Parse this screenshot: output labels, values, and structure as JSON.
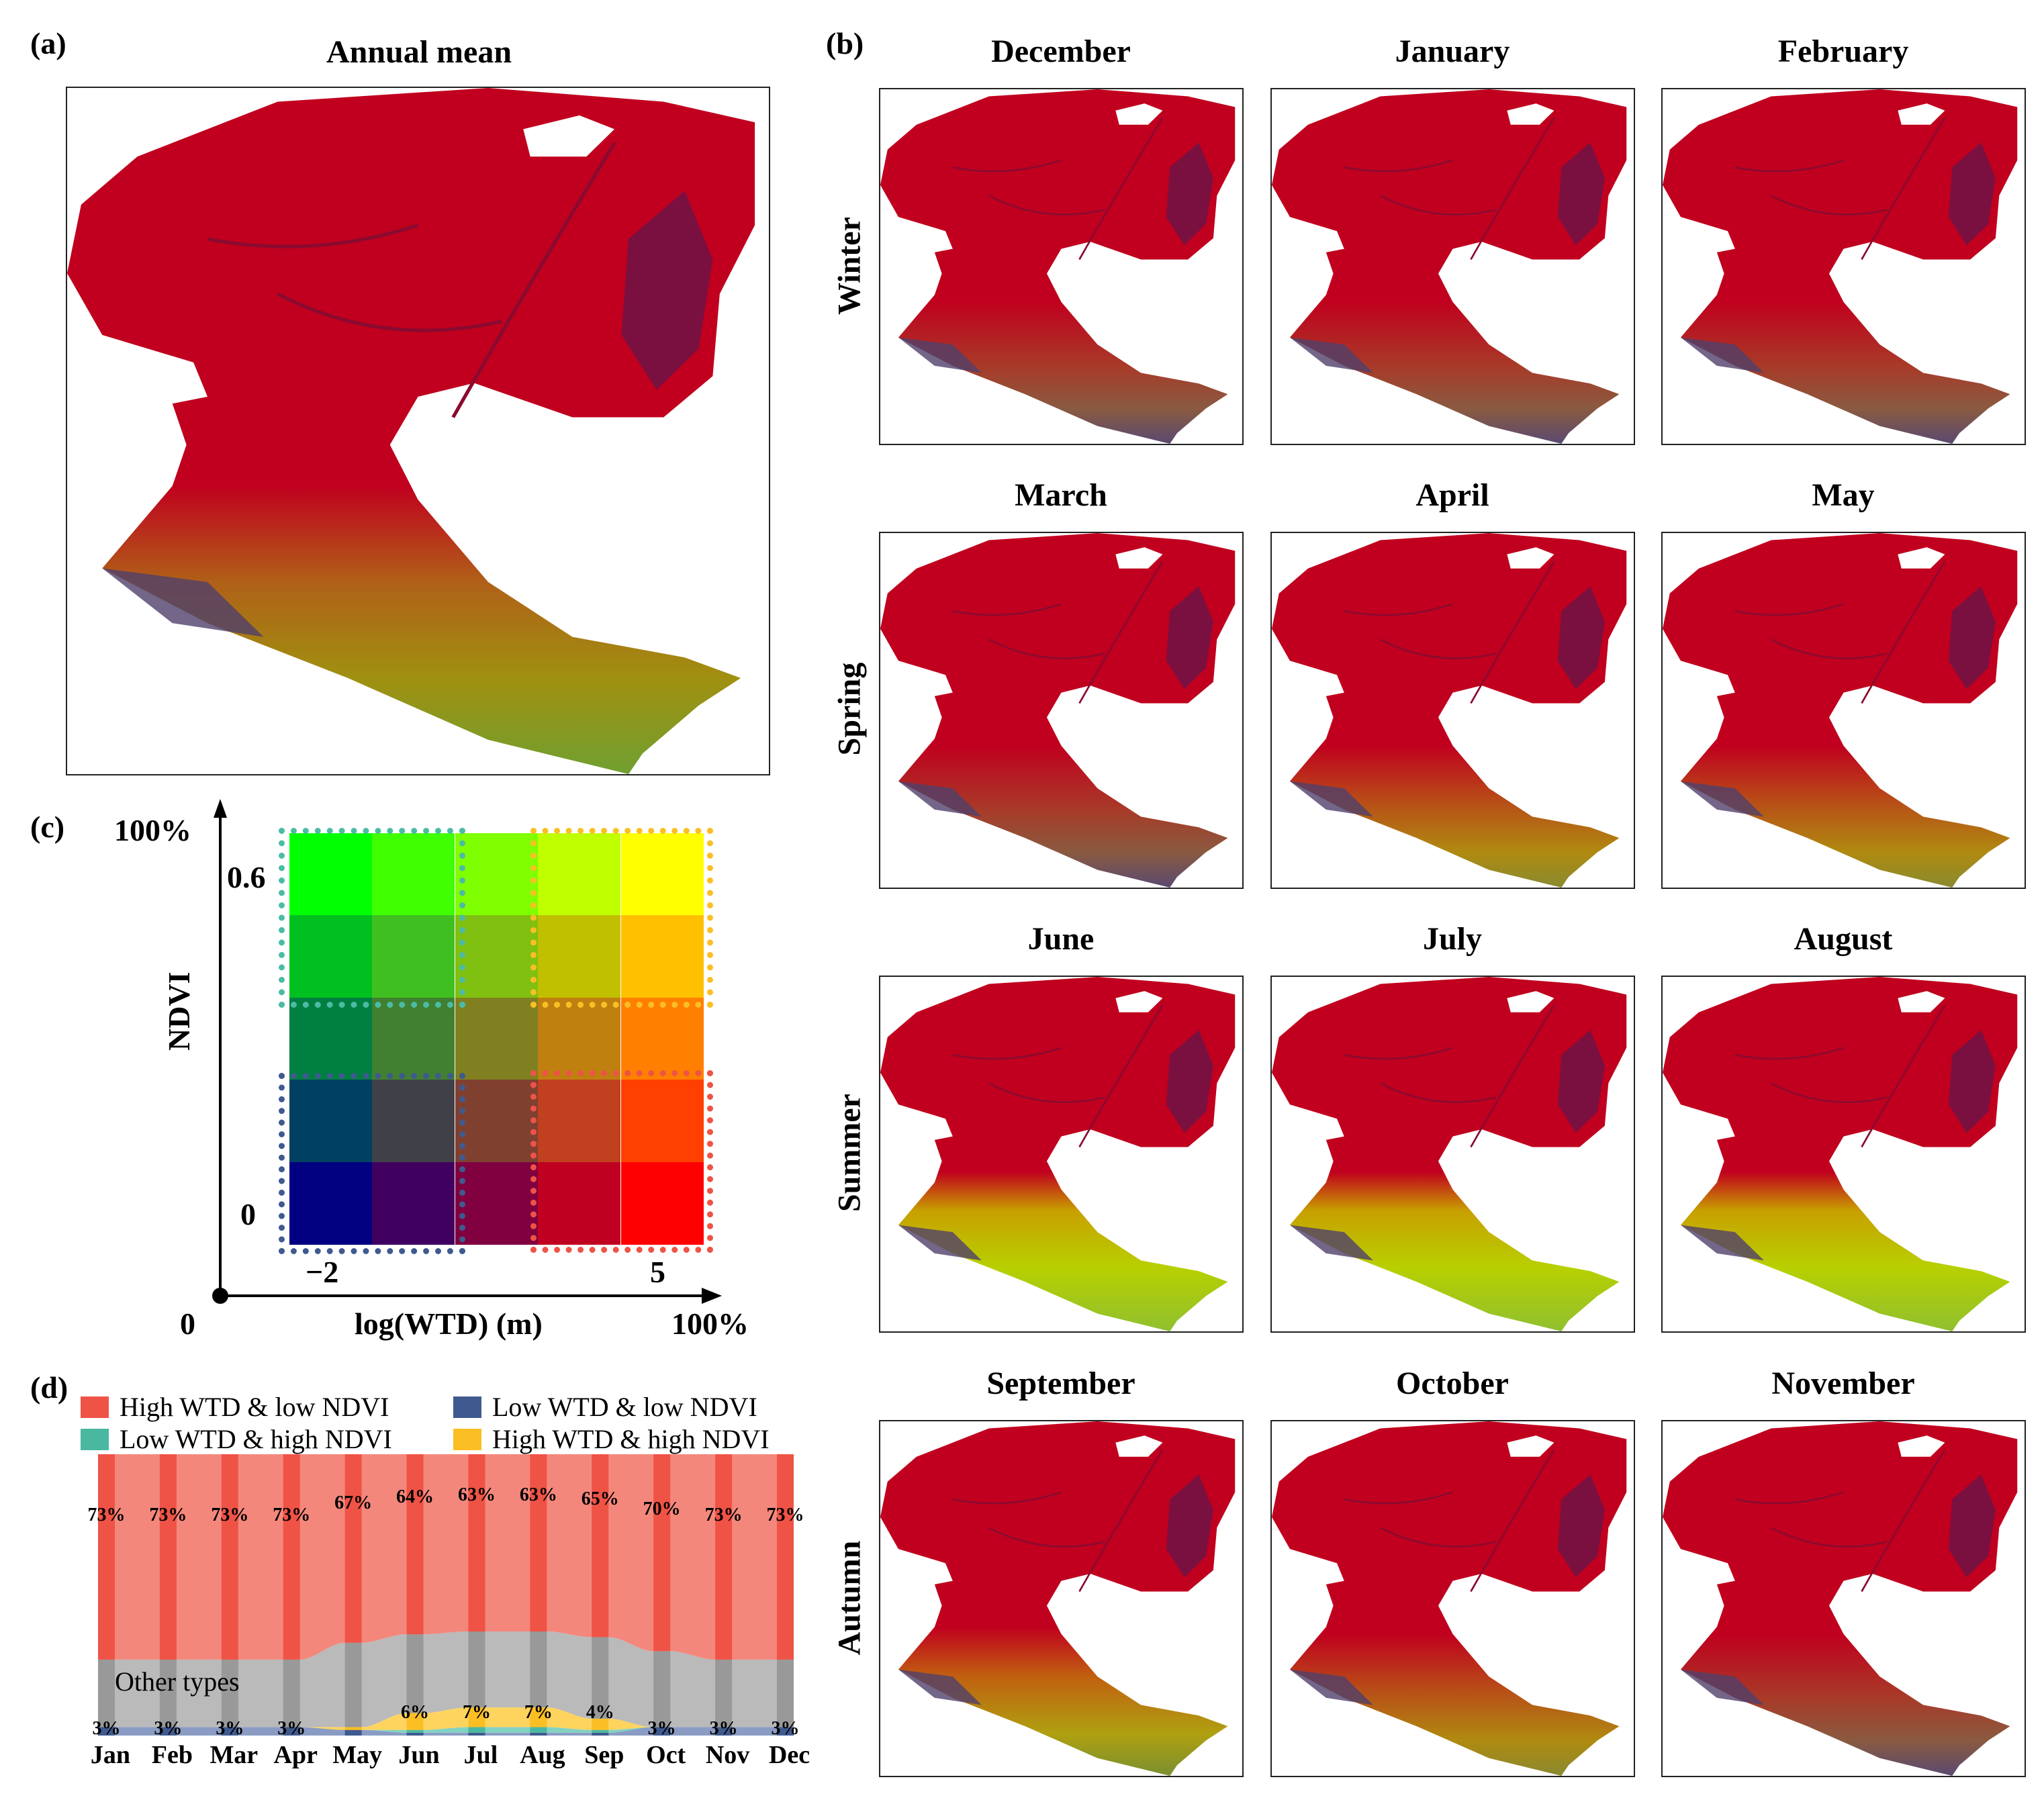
{
  "panel_a": {
    "label": "(a)",
    "title": "Annual mean"
  },
  "panel_b": {
    "label": "(b)",
    "seasons": [
      {
        "name": "Winter",
        "months": [
          "December",
          "January",
          "February"
        ]
      },
      {
        "name": "Spring",
        "months": [
          "March",
          "April",
          "May"
        ]
      },
      {
        "name": "Summer",
        "months": [
          "June",
          "July",
          "August"
        ]
      },
      {
        "name": "Autumn",
        "months": [
          "September",
          "October",
          "November"
        ]
      }
    ]
  },
  "panel_c": {
    "label": "(c)",
    "y_axis_label": "NDVI",
    "x_axis_label": "log(WTD) (m)",
    "origin_label": "0",
    "y_max_label": "100%",
    "x_max_label": "100%",
    "ndvi_ticks": [
      "0.6",
      "0"
    ],
    "wtd_ticks": [
      "−2",
      "5"
    ],
    "grid_colors": [
      [
        "#00ff00",
        "#40ff00",
        "#80ff00",
        "#bfff00",
        "#ffff00"
      ],
      [
        "#00c020",
        "#40c020",
        "#80c010",
        "#c0c000",
        "#ffc000"
      ],
      [
        "#008040",
        "#408030",
        "#808020",
        "#c08010",
        "#ff8000"
      ],
      [
        "#004060",
        "#404048",
        "#804030",
        "#c04020",
        "#ff4000"
      ],
      [
        "#000080",
        "#400060",
        "#800040",
        "#c00020",
        "#ff0000"
      ]
    ]
  },
  "panel_d": {
    "label": "(d)"
  },
  "chart_data": {
    "type": "area",
    "title": "",
    "xlabel": "",
    "ylabel": "",
    "ylim": [
      0,
      100
    ],
    "categories": [
      "Jan",
      "Feb",
      "Mar",
      "Apr",
      "May",
      "Jun",
      "Jul",
      "Aug",
      "Sep",
      "Oct",
      "Nov",
      "Dec"
    ],
    "legend_placement": "top",
    "series": [
      {
        "name": "Low WTD & low NDVI",
        "color": "#3f5a8f",
        "light": "#8a9cc4",
        "values": [
          3,
          3,
          3,
          3,
          2,
          1,
          1,
          1,
          1,
          3,
          3,
          3
        ]
      },
      {
        "name": "Low WTD & high NDVI",
        "color": "#4ab8a0",
        "light": "#82d2c2",
        "values": [
          0,
          0,
          0,
          0,
          0,
          1,
          2,
          2,
          1,
          0,
          0,
          0
        ]
      },
      {
        "name": "High WTD & high NDVI",
        "color": "#fbbf24",
        "light": "#ffd45e",
        "values": [
          0,
          0,
          0,
          0,
          1,
          6,
          7,
          7,
          4,
          0,
          0,
          0
        ]
      },
      {
        "name": "Other types",
        "color": "#999999",
        "light": "#bababa",
        "values": [
          24,
          24,
          24,
          24,
          30,
          28,
          27,
          27,
          29,
          27,
          24,
          24
        ]
      },
      {
        "name": "High WTD & low NDVI",
        "color": "#ef5346",
        "light": "#f4877c",
        "values": [
          73,
          73,
          73,
          73,
          67,
          64,
          63,
          63,
          65,
          70,
          73,
          73
        ]
      }
    ],
    "top_labels": [
      "73%",
      "73%",
      "73%",
      "73%",
      "67%",
      "64%",
      "63%",
      "63%",
      "65%",
      "70%",
      "73%",
      "73%"
    ],
    "bottom_labels": [
      "3%",
      "3%",
      "3%",
      "3%",
      "",
      "6%",
      "7%",
      "7%",
      "4%",
      "3%",
      "3%",
      "3%"
    ],
    "other_label": "Other types",
    "legend": [
      {
        "name": "High WTD & low NDVI",
        "color": "#ef5346"
      },
      {
        "name": "Low WTD & low NDVI",
        "color": "#3f5a8f"
      },
      {
        "name": "Low WTD & high NDVI",
        "color": "#4ab8a0"
      },
      {
        "name": "High WTD & high NDVI",
        "color": "#fbbf24"
      }
    ]
  }
}
